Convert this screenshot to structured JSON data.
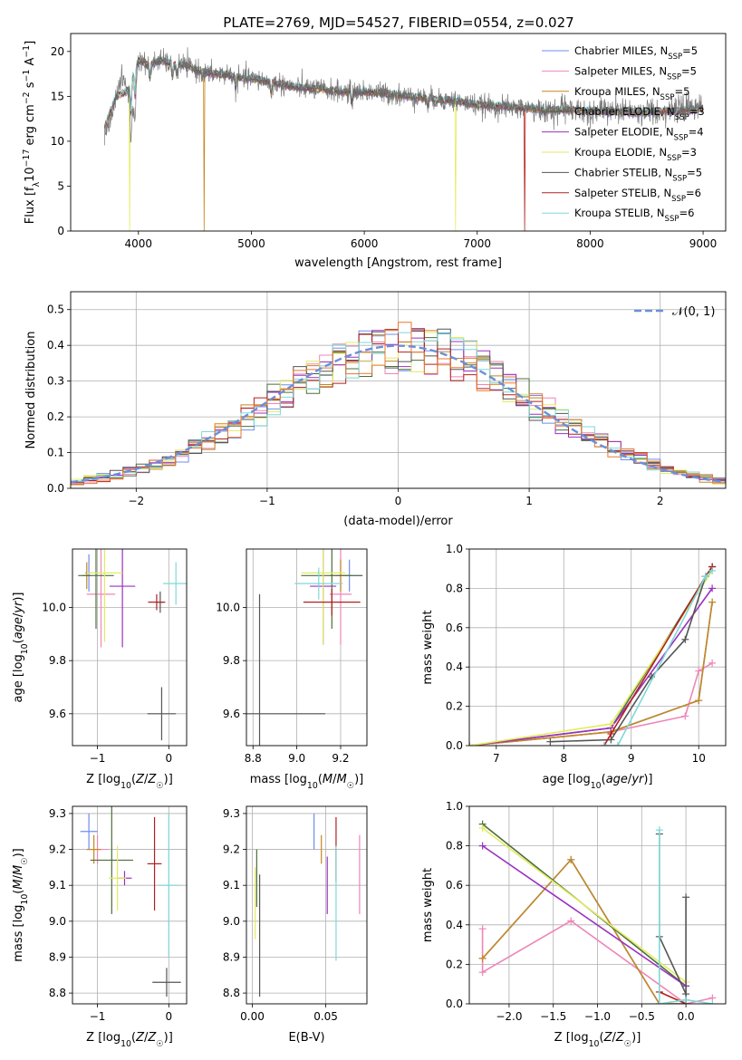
{
  "figure": {
    "title": "PLATE=2769, MJD=54527, FIBERID=0554, z=0.027"
  },
  "colors": {
    "Chabrier MILES": "#6f8ef0",
    "Salpeter MILES": "#ee86b8",
    "Kroupa MILES": "#c48820",
    "Chabrier ELODIE": "#4d6e3c",
    "Salpeter ELODIE": "#9b30c0",
    "Kroupa ELODIE": "#e3ec60",
    "Chabrier STELIB": "#555555",
    "Salpeter STELIB": "#b02020",
    "Kroupa STELIB": "#7ed8d8",
    "normal_curve": "#6b8fd8",
    "orange_hist": "#e87830"
  },
  "chart_data": [
    {
      "id": "spectrum",
      "type": "line",
      "title": "PLATE=2769, MJD=54527, FIBERID=0554, z=0.027",
      "xlabel": "wavelength [Angstrom, rest frame]",
      "ylabel": "Flux [f_λ10^-17 erg cm^-2 s^-1 A^-1]",
      "xlim": [
        3400,
        9200
      ],
      "ylim": [
        0,
        22
      ],
      "xticks": [
        4000,
        5000,
        6000,
        7000,
        8000,
        9000
      ],
      "yticks": [
        0,
        5,
        10,
        15,
        20
      ],
      "grid": false,
      "legend_position": "top-right",
      "legend": [
        {
          "base": "Chabrier MILES, N",
          "sub": "SSP",
          "tail": "=5"
        },
        {
          "base": "Salpeter MILES, N",
          "sub": "SSP",
          "tail": "=5"
        },
        {
          "base": "Kroupa MILES, N",
          "sub": "SSP",
          "tail": "=5"
        },
        {
          "base": "Chabrier ELODIE, N",
          "sub": "SSP",
          "tail": "=3"
        },
        {
          "base": "Salpeter ELODIE, N",
          "sub": "SSP",
          "tail": "=4"
        },
        {
          "base": "Kroupa ELODIE, N",
          "sub": "SSP",
          "tail": "=3"
        },
        {
          "base": "Chabrier STELIB, N",
          "sub": "SSP",
          "tail": "=5"
        },
        {
          "base": "Salpeter STELIB, N",
          "sub": "SSP",
          "tail": "=6"
        },
        {
          "base": "Kroupa STELIB, N",
          "sub": "SSP",
          "tail": "=6"
        }
      ],
      "data_spectrum": {
        "x": [
          3700,
          3750,
          3800,
          3850,
          3900,
          3950,
          4000,
          4050,
          4100,
          4150,
          4200,
          4300,
          4400,
          4500,
          4600,
          4700,
          4800,
          4900,
          5000,
          5200,
          5400,
          5600,
          5800,
          6000,
          6200,
          6400,
          6600,
          6800,
          7000,
          7200,
          7400,
          7600,
          7800,
          8000,
          8200,
          8400,
          8600,
          8800,
          9000
        ],
        "y": [
          11,
          12,
          15,
          17,
          16,
          13,
          19,
          19,
          18,
          19,
          19,
          18.5,
          18.5,
          18,
          17.5,
          17.5,
          17.5,
          17,
          17,
          16.5,
          16,
          15.8,
          15.5,
          15.5,
          15.3,
          15,
          14.7,
          14.5,
          14,
          13.8,
          13.7,
          13.5,
          13.5,
          13.4,
          13.3,
          13.2,
          13.3,
          13.5,
          14
        ]
      },
      "model_spectrum": {
        "x": [
          3700,
          3800,
          3900,
          4000,
          4100,
          4200,
          4300,
          4400,
          4500,
          4600,
          4700,
          4800,
          4900,
          5000,
          5200,
          5400,
          5600,
          5800,
          6000,
          6200,
          6400,
          6600,
          6800,
          7000,
          7200,
          7400,
          7600,
          7800,
          8000,
          8200,
          8400,
          8600,
          8800,
          9000
        ],
        "y": [
          11.5,
          15,
          15.5,
          19,
          18.5,
          19,
          18.6,
          18.5,
          18,
          17.6,
          17.5,
          17.4,
          17,
          17,
          16.5,
          16,
          15.8,
          15.5,
          15.5,
          15.3,
          15,
          14.7,
          14.5,
          14.1,
          13.9,
          13.7,
          13.5,
          13.5,
          13.4,
          13.3,
          13.2,
          13.3,
          13.4,
          13.6
        ]
      },
      "dropouts": [
        {
          "series": "Kroupa MILES",
          "x": 4580
        },
        {
          "series": "Kroupa ELODIE",
          "x": 3920
        },
        {
          "series": "Kroupa ELODIE",
          "x": 6810
        },
        {
          "series": "Salpeter STELIB",
          "x": 7420
        }
      ]
    },
    {
      "id": "residuals",
      "type": "histogram",
      "xlabel": "(data-model)/error",
      "ylabel": "Normed distribution",
      "xlim": [
        -2.5,
        2.5
      ],
      "ylim": [
        0,
        0.55
      ],
      "xticks": [
        -2,
        -1,
        0,
        1,
        2
      ],
      "yticks": [
        0.0,
        0.1,
        0.2,
        0.3,
        0.4,
        0.5
      ],
      "grid": true,
      "legend_position": "top-right",
      "legend_label": "𝒩(0, 1)",
      "bin_width": 0.1,
      "bin_start": -2.5,
      "reference_curve": "standard normal density"
    },
    {
      "id": "age_vs_Z",
      "type": "errorbar",
      "xlabel": "Z [log₁₀(Z/Z☉)]",
      "ylabel": "age  [log₁₀(age/yr)]",
      "xlim": [
        -1.35,
        0.25
      ],
      "ylim": [
        9.48,
        10.22
      ],
      "xticks": [
        -1,
        0
      ],
      "yticks": [
        9.6,
        9.8,
        10.0
      ],
      "grid": true,
      "points": [
        {
          "series": "Chabrier MILES",
          "x": -1.12,
          "y": 10.13,
          "xerr": 0.05,
          "yerr": 0.07
        },
        {
          "series": "Salpeter MILES",
          "x": -0.95,
          "y": 10.05,
          "xerr": 0.2,
          "yerr": 0.2
        },
        {
          "series": "Kroupa MILES",
          "x": -1.15,
          "y": 10.12,
          "xerr": 0.06,
          "yerr": 0.05
        },
        {
          "series": "Chabrier ELODIE",
          "x": -1.02,
          "y": 10.12,
          "xerr": 0.25,
          "yerr": 0.2
        },
        {
          "series": "Salpeter ELODIE",
          "x": -0.65,
          "y": 10.08,
          "xerr": 0.18,
          "yerr": 0.23
        },
        {
          "series": "Kroupa ELODIE",
          "x": -0.9,
          "y": 10.13,
          "xerr": 0.25,
          "yerr": 0.26
        },
        {
          "series": "Chabrier STELIB",
          "x": -0.1,
          "y": 9.6,
          "xerr": 0.2,
          "yerr": 0.1
        },
        {
          "series": "Chabrier STELIB",
          "x": -0.12,
          "y": 10.02,
          "xerr": 0.04,
          "yerr": 0.04
        },
        {
          "series": "Salpeter STELIB",
          "x": -0.17,
          "y": 10.02,
          "xerr": 0.12,
          "yerr": 0.03
        },
        {
          "series": "Kroupa STELIB",
          "x": 0.1,
          "y": 10.09,
          "xerr": 0.18,
          "yerr": 0.08
        }
      ]
    },
    {
      "id": "age_vs_mass",
      "type": "errorbar",
      "xlabel": "mass [log₁₀(M/M☉)]",
      "ylabel": "",
      "xlim": [
        8.77,
        9.32
      ],
      "ylim": [
        9.48,
        10.22
      ],
      "xticks": [
        8.8,
        9.0,
        9.2
      ],
      "yticks": [
        9.6,
        9.8,
        10.0
      ],
      "grid": true,
      "points": [
        {
          "series": "Chabrier MILES",
          "x": 9.24,
          "y": 10.12,
          "xerr": 0.06,
          "yerr": 0.06
        },
        {
          "series": "Salpeter MILES",
          "x": 9.2,
          "y": 10.05,
          "xerr": 0.05,
          "yerr": 0.19
        },
        {
          "series": "Kroupa MILES",
          "x": 9.2,
          "y": 10.12,
          "xerr": 0.05,
          "yerr": 0.06
        },
        {
          "series": "Chabrier ELODIE",
          "x": 9.16,
          "y": 10.12,
          "xerr": 0.14,
          "yerr": 0.2
        },
        {
          "series": "Salpeter ELODIE",
          "x": 9.12,
          "y": 10.08,
          "xerr": 0.06,
          "yerr": 0.22
        },
        {
          "series": "Kroupa ELODIE",
          "x": 9.12,
          "y": 10.13,
          "xerr": 0.1,
          "yerr": 0.27
        },
        {
          "series": "Chabrier STELIB",
          "x": 8.83,
          "y": 9.6,
          "xerr": 0.3,
          "yerr": 0.45
        },
        {
          "series": "Salpeter STELIB",
          "x": 9.16,
          "y": 10.02,
          "xerr": 0.13,
          "yerr": 0.05
        },
        {
          "series": "Kroupa STELIB",
          "x": 9.1,
          "y": 10.09,
          "xerr": 0.11,
          "yerr": 0.06
        }
      ]
    },
    {
      "id": "massweight_vs_age",
      "type": "line",
      "xlabel": "age  [log₁₀(age/yr)]",
      "ylabel": "mass weight",
      "xlim": [
        6.6,
        10.4
      ],
      "ylim": [
        0,
        1
      ],
      "xticks": [
        7,
        8,
        9,
        10
      ],
      "yticks": [
        0.0,
        0.2,
        0.4,
        0.6,
        0.8,
        1.0
      ],
      "grid": true,
      "series": [
        {
          "name": "Chabrier MILES",
          "x": [
            6.6,
            8.7,
            10.0,
            10.2
          ],
          "y": [
            0.0,
            0.07,
            0.23,
            0.73
          ]
        },
        {
          "name": "Salpeter MILES",
          "x": [
            6.6,
            8.7,
            9.8,
            10.0,
            10.2
          ],
          "y": [
            0.0,
            0.07,
            0.15,
            0.38,
            0.42
          ]
        },
        {
          "name": "Kroupa MILES",
          "x": [
            6.6,
            8.7,
            10.0,
            10.2
          ],
          "y": [
            0.0,
            0.07,
            0.23,
            0.73
          ]
        },
        {
          "name": "Chabrier ELODIE",
          "x": [
            6.6,
            8.7,
            10.2
          ],
          "y": [
            0.0,
            0.09,
            0.91
          ]
        },
        {
          "name": "Salpeter ELODIE",
          "x": [
            6.6,
            8.7,
            10.2
          ],
          "y": [
            0.0,
            0.09,
            0.8
          ]
        },
        {
          "name": "Kroupa ELODIE",
          "x": [
            6.6,
            8.7,
            10.2
          ],
          "y": [
            0.0,
            0.11,
            0.89
          ]
        },
        {
          "name": "Chabrier STELIB",
          "x": [
            7.8,
            8.7,
            9.3,
            9.8,
            10.1,
            10.2
          ],
          "y": [
            0.02,
            0.03,
            0.35,
            0.54,
            0.86,
            0.91
          ]
        },
        {
          "name": "Salpeter STELIB",
          "x": [
            8.6,
            8.7,
            10.1,
            10.2
          ],
          "y": [
            0.0,
            0.06,
            0.86,
            0.91
          ]
        },
        {
          "name": "Kroupa STELIB",
          "x": [
            8.6,
            8.8,
            10.1,
            10.2
          ],
          "y": [
            0.0,
            0.0,
            0.86,
            0.89
          ]
        }
      ]
    },
    {
      "id": "mass_vs_Z",
      "type": "errorbar",
      "xlabel": "Z [log₁₀(Z/Z☉)]",
      "ylabel": "mass [log₁₀(M/M☉)]",
      "xlim": [
        -1.35,
        0.25
      ],
      "ylim": [
        8.77,
        9.32
      ],
      "xticks": [
        -1,
        0
      ],
      "yticks": [
        8.8,
        8.9,
        9.0,
        9.1,
        9.2,
        9.3
      ],
      "grid": true,
      "points": [
        {
          "series": "Chabrier MILES",
          "x": -1.12,
          "y": 9.25,
          "xerr": 0.12,
          "yerr": 0.05
        },
        {
          "series": "Salpeter MILES",
          "x": -1.0,
          "y": 9.2,
          "xerr": 0.15,
          "yerr": 0.04
        },
        {
          "series": "Kroupa MILES",
          "x": -1.05,
          "y": 9.2,
          "xerr": 0.1,
          "yerr": 0.04
        },
        {
          "series": "Chabrier ELODIE",
          "x": -0.8,
          "y": 9.17,
          "xerr": 0.3,
          "yerr": 0.15
        },
        {
          "series": "Salpeter ELODIE",
          "x": -0.62,
          "y": 9.12,
          "xerr": 0.1,
          "yerr": 0.02
        },
        {
          "series": "Kroupa ELODIE",
          "x": -0.72,
          "y": 9.12,
          "xerr": 0.12,
          "yerr": 0.09
        },
        {
          "series": "Chabrier STELIB",
          "x": -0.03,
          "y": 8.83,
          "xerr": 0.2,
          "yerr": 0.04
        },
        {
          "series": "Salpeter STELIB",
          "x": -0.2,
          "y": 9.16,
          "xerr": 0.1,
          "yerr": 0.13
        },
        {
          "series": "Kroupa STELIB",
          "x": 0.0,
          "y": 9.1,
          "xerr": 0.15,
          "yerr": 0.2
        }
      ]
    },
    {
      "id": "mass_vs_EBV",
      "type": "errorbar",
      "xlabel": "E(B-V)",
      "ylabel": "",
      "xlim": [
        -0.004,
        0.078
      ],
      "ylim": [
        8.77,
        9.32
      ],
      "xticks": [
        0.0,
        0.05
      ],
      "yticks": [
        8.8,
        8.9,
        9.0,
        9.1,
        9.2,
        9.3
      ],
      "grid": true,
      "points": [
        {
          "series": "Chabrier MILES",
          "x": 0.042,
          "y": 9.25,
          "xerr": 0,
          "yerr": 0.05
        },
        {
          "series": "Salpeter MILES",
          "x": 0.073,
          "y": 9.13,
          "xerr": 0,
          "yerr": 0.11
        },
        {
          "series": "Kroupa MILES",
          "x": 0.047,
          "y": 9.2,
          "xerr": 0,
          "yerr": 0.04
        },
        {
          "series": "Chabrier ELODIE",
          "x": 0.003,
          "y": 9.12,
          "xerr": 0,
          "yerr": 0.08
        },
        {
          "series": "Salpeter ELODIE",
          "x": 0.051,
          "y": 9.1,
          "xerr": 0,
          "yerr": 0.08
        },
        {
          "series": "Kroupa ELODIE",
          "x": 0.002,
          "y": 9.05,
          "xerr": 0,
          "yerr": 0.1
        },
        {
          "series": "Chabrier STELIB",
          "x": 0.005,
          "y": 8.96,
          "xerr": 0,
          "yerr": 0.17
        },
        {
          "series": "Salpeter STELIB",
          "x": 0.057,
          "y": 9.2,
          "xerr": 0,
          "yerr": 0.09
        },
        {
          "series": "Kroupa STELIB",
          "x": 0.057,
          "y": 9.05,
          "xerr": 0,
          "yerr": 0.16
        }
      ]
    },
    {
      "id": "massweight_vs_Z",
      "type": "line",
      "xlabel": "Z [log₁₀(Z/Z☉)]",
      "ylabel": "mass weight",
      "xlim": [
        -2.45,
        0.45
      ],
      "ylim": [
        0,
        1
      ],
      "xticks": [
        -2.0,
        -1.5,
        -1.0,
        -0.5,
        0.0
      ],
      "yticks": [
        0.0,
        0.2,
        0.4,
        0.6,
        0.8,
        1.0
      ],
      "grid": true,
      "series": [
        {
          "name": "Chabrier MILES",
          "x": [
            -2.3,
            -1.3,
            -0.3,
            0.0
          ],
          "y": [
            0.23,
            0.73,
            0.0,
            0.0
          ]
        },
        {
          "name": "Salpeter MILES",
          "x": [
            -2.3,
            -2.3,
            -1.3,
            0.0,
            0.3
          ],
          "y": [
            0.38,
            0.16,
            0.42,
            0.0,
            0.03
          ]
        },
        {
          "name": "Kroupa MILES",
          "x": [
            -2.3,
            -1.3,
            -0.3,
            0.0
          ],
          "y": [
            0.23,
            0.73,
            0.0,
            0.0
          ]
        },
        {
          "name": "Chabrier ELODIE",
          "x": [
            -2.3,
            0.0
          ],
          "y": [
            0.91,
            0.09
          ]
        },
        {
          "name": "Salpeter ELODIE",
          "x": [
            -2.3,
            0.0
          ],
          "y": [
            0.8,
            0.09
          ]
        },
        {
          "name": "Kroupa ELODIE",
          "x": [
            -2.3,
            0.0
          ],
          "y": [
            0.89,
            0.11
          ]
        },
        {
          "name": "Chabrier STELIB",
          "x": [
            -0.3,
            -0.3,
            0.0,
            0.0,
            0.0
          ],
          "y": [
            0.86,
            0.34,
            0.05,
            0.54,
            0.0
          ]
        },
        {
          "name": "Salpeter STELIB",
          "x": [
            -0.3,
            0.0
          ],
          "y": [
            0.06,
            0.0
          ]
        },
        {
          "name": "Kroupa STELIB",
          "x": [
            -0.3,
            -0.3,
            0.0,
            0.3
          ],
          "y": [
            0.88,
            0.0,
            0.02,
            0.0
          ]
        }
      ]
    }
  ]
}
